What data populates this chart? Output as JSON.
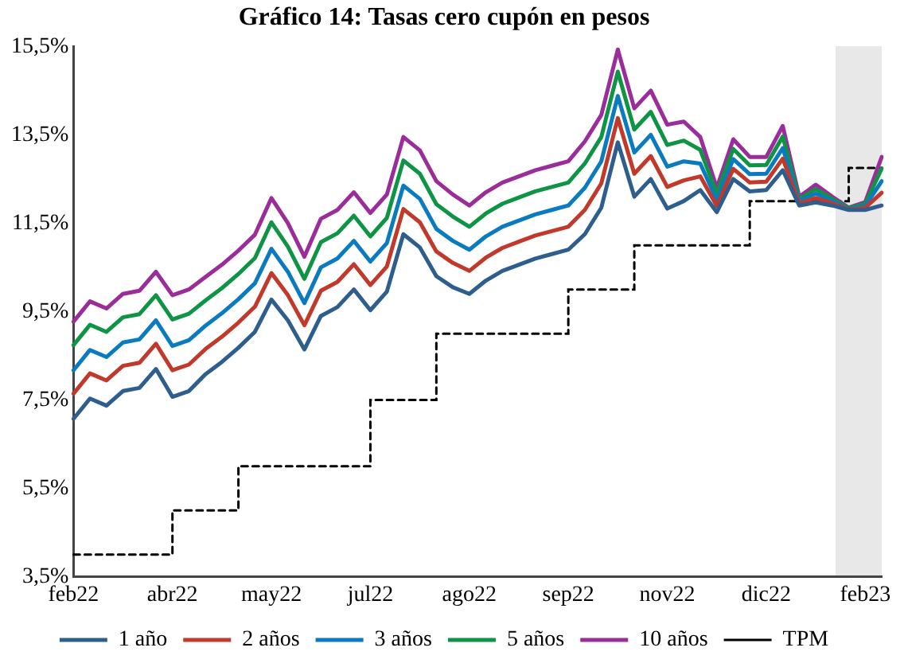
{
  "chart_data": {
    "type": "line",
    "title": "Gráfico 14: Tasas cero cupón en pesos",
    "categories": [
      "feb22",
      null,
      null,
      null,
      null,
      null,
      "abr22",
      null,
      null,
      null,
      null,
      null,
      "may22",
      null,
      null,
      null,
      null,
      null,
      "jul22",
      null,
      null,
      null,
      null,
      null,
      "ago22",
      null,
      null,
      null,
      null,
      null,
      "sep22",
      null,
      null,
      null,
      null,
      null,
      "nov22",
      null,
      null,
      null,
      null,
      null,
      "dic22",
      null,
      null,
      null,
      null,
      null,
      "feb23",
      null
    ],
    "ylim": [
      3.5,
      15.5
    ],
    "yticks": [
      {
        "value": 3.5,
        "label": "3,5%"
      },
      {
        "value": 5.5,
        "label": "5,5%"
      },
      {
        "value": 7.5,
        "label": "7,5%"
      },
      {
        "value": 9.5,
        "label": "9,5%"
      },
      {
        "value": 11.5,
        "label": "11,5%"
      },
      {
        "value": 13.5,
        "label": "13,5%"
      },
      {
        "value": 15.5,
        "label": "15,5%"
      }
    ],
    "series": [
      {
        "name": "1 año",
        "color": "#2e5e8e",
        "values": [
          7.07,
          7.53,
          7.37,
          7.7,
          7.77,
          8.2,
          7.57,
          7.7,
          8.08,
          8.36,
          8.68,
          9.04,
          9.77,
          9.3,
          8.64,
          9.4,
          9.6,
          10.0,
          9.53,
          9.95,
          11.25,
          10.95,
          10.3,
          10.05,
          9.9,
          10.2,
          10.42,
          10.56,
          10.7,
          10.8,
          10.9,
          11.25,
          11.85,
          13.33,
          12.1,
          12.5,
          11.83,
          12.0,
          12.25,
          11.75,
          12.5,
          12.22,
          12.25,
          12.7,
          11.9,
          11.97,
          11.9,
          11.8,
          11.8,
          11.9
        ]
      },
      {
        "name": "2 años",
        "color": "#c0392b",
        "values": [
          7.64,
          8.1,
          7.94,
          8.27,
          8.34,
          8.77,
          8.17,
          8.3,
          8.65,
          8.93,
          9.25,
          9.61,
          10.37,
          9.87,
          9.19,
          9.97,
          10.17,
          10.57,
          10.1,
          10.52,
          11.82,
          11.52,
          10.86,
          10.6,
          10.42,
          10.72,
          10.94,
          11.08,
          11.22,
          11.32,
          11.42,
          11.8,
          12.4,
          13.88,
          12.62,
          13.02,
          12.32,
          12.47,
          12.56,
          11.89,
          12.73,
          12.42,
          12.44,
          12.96,
          11.95,
          12.07,
          11.95,
          11.81,
          11.85,
          12.19
        ]
      },
      {
        "name": "3 años",
        "color": "#0a7bc1",
        "values": [
          8.17,
          8.63,
          8.47,
          8.8,
          8.87,
          9.3,
          8.72,
          8.85,
          9.18,
          9.46,
          9.78,
          10.14,
          10.92,
          10.4,
          9.69,
          10.5,
          10.7,
          11.1,
          10.63,
          11.05,
          12.35,
          12.05,
          11.37,
          11.1,
          10.9,
          11.2,
          11.42,
          11.56,
          11.7,
          11.8,
          11.9,
          12.3,
          12.9,
          14.38,
          13.1,
          13.5,
          12.78,
          12.9,
          12.85,
          12.02,
          12.95,
          12.61,
          12.62,
          13.2,
          12.0,
          12.17,
          12.0,
          11.82,
          11.89,
          12.45
        ]
      },
      {
        "name": "5 años",
        "color": "#0e9444",
        "values": [
          8.74,
          9.2,
          9.04,
          9.37,
          9.44,
          9.87,
          9.32,
          9.45,
          9.75,
          10.03,
          10.35,
          10.71,
          11.52,
          10.97,
          10.24,
          11.07,
          11.27,
          11.67,
          11.2,
          11.62,
          12.92,
          12.62,
          11.93,
          11.65,
          11.42,
          11.72,
          11.94,
          12.08,
          12.22,
          12.32,
          12.42,
          12.85,
          13.45,
          14.93,
          13.62,
          14.02,
          13.27,
          13.37,
          13.16,
          12.17,
          13.18,
          12.81,
          12.82,
          13.46,
          12.05,
          12.27,
          12.05,
          11.84,
          11.94,
          12.74
        ]
      },
      {
        "name": "10 años",
        "color": "#9b2d9b",
        "values": [
          9.27,
          9.73,
          9.57,
          9.9,
          9.97,
          10.4,
          9.87,
          10.0,
          10.28,
          10.56,
          10.88,
          11.24,
          12.07,
          11.5,
          10.74,
          11.6,
          11.8,
          12.2,
          11.73,
          12.15,
          13.45,
          13.15,
          12.45,
          12.15,
          11.9,
          12.2,
          12.42,
          12.56,
          12.7,
          12.8,
          12.9,
          13.35,
          13.95,
          15.43,
          14.1,
          14.5,
          13.73,
          13.8,
          13.45,
          12.3,
          13.4,
          13.0,
          13.0,
          13.7,
          12.1,
          12.37,
          12.1,
          11.85,
          11.98,
          13.0
        ]
      },
      {
        "name": "TPM",
        "type": "step",
        "color": "#000000",
        "line_style": "dashed",
        "values": [
          4,
          4,
          4,
          4,
          4,
          4,
          5,
          5,
          5,
          5,
          6,
          6,
          6,
          6,
          6,
          6,
          6,
          6,
          7.5,
          7.5,
          7.5,
          7.5,
          9,
          9,
          9,
          9,
          9,
          9,
          9,
          9,
          10,
          10,
          10,
          10,
          11,
          11,
          11,
          11,
          11,
          11,
          11,
          12,
          12,
          12,
          12,
          12,
          12,
          12.75,
          12.75,
          12.75
        ]
      }
    ],
    "legend": "bottom",
    "grid": false,
    "marker": "none",
    "line_style": "solid"
  }
}
